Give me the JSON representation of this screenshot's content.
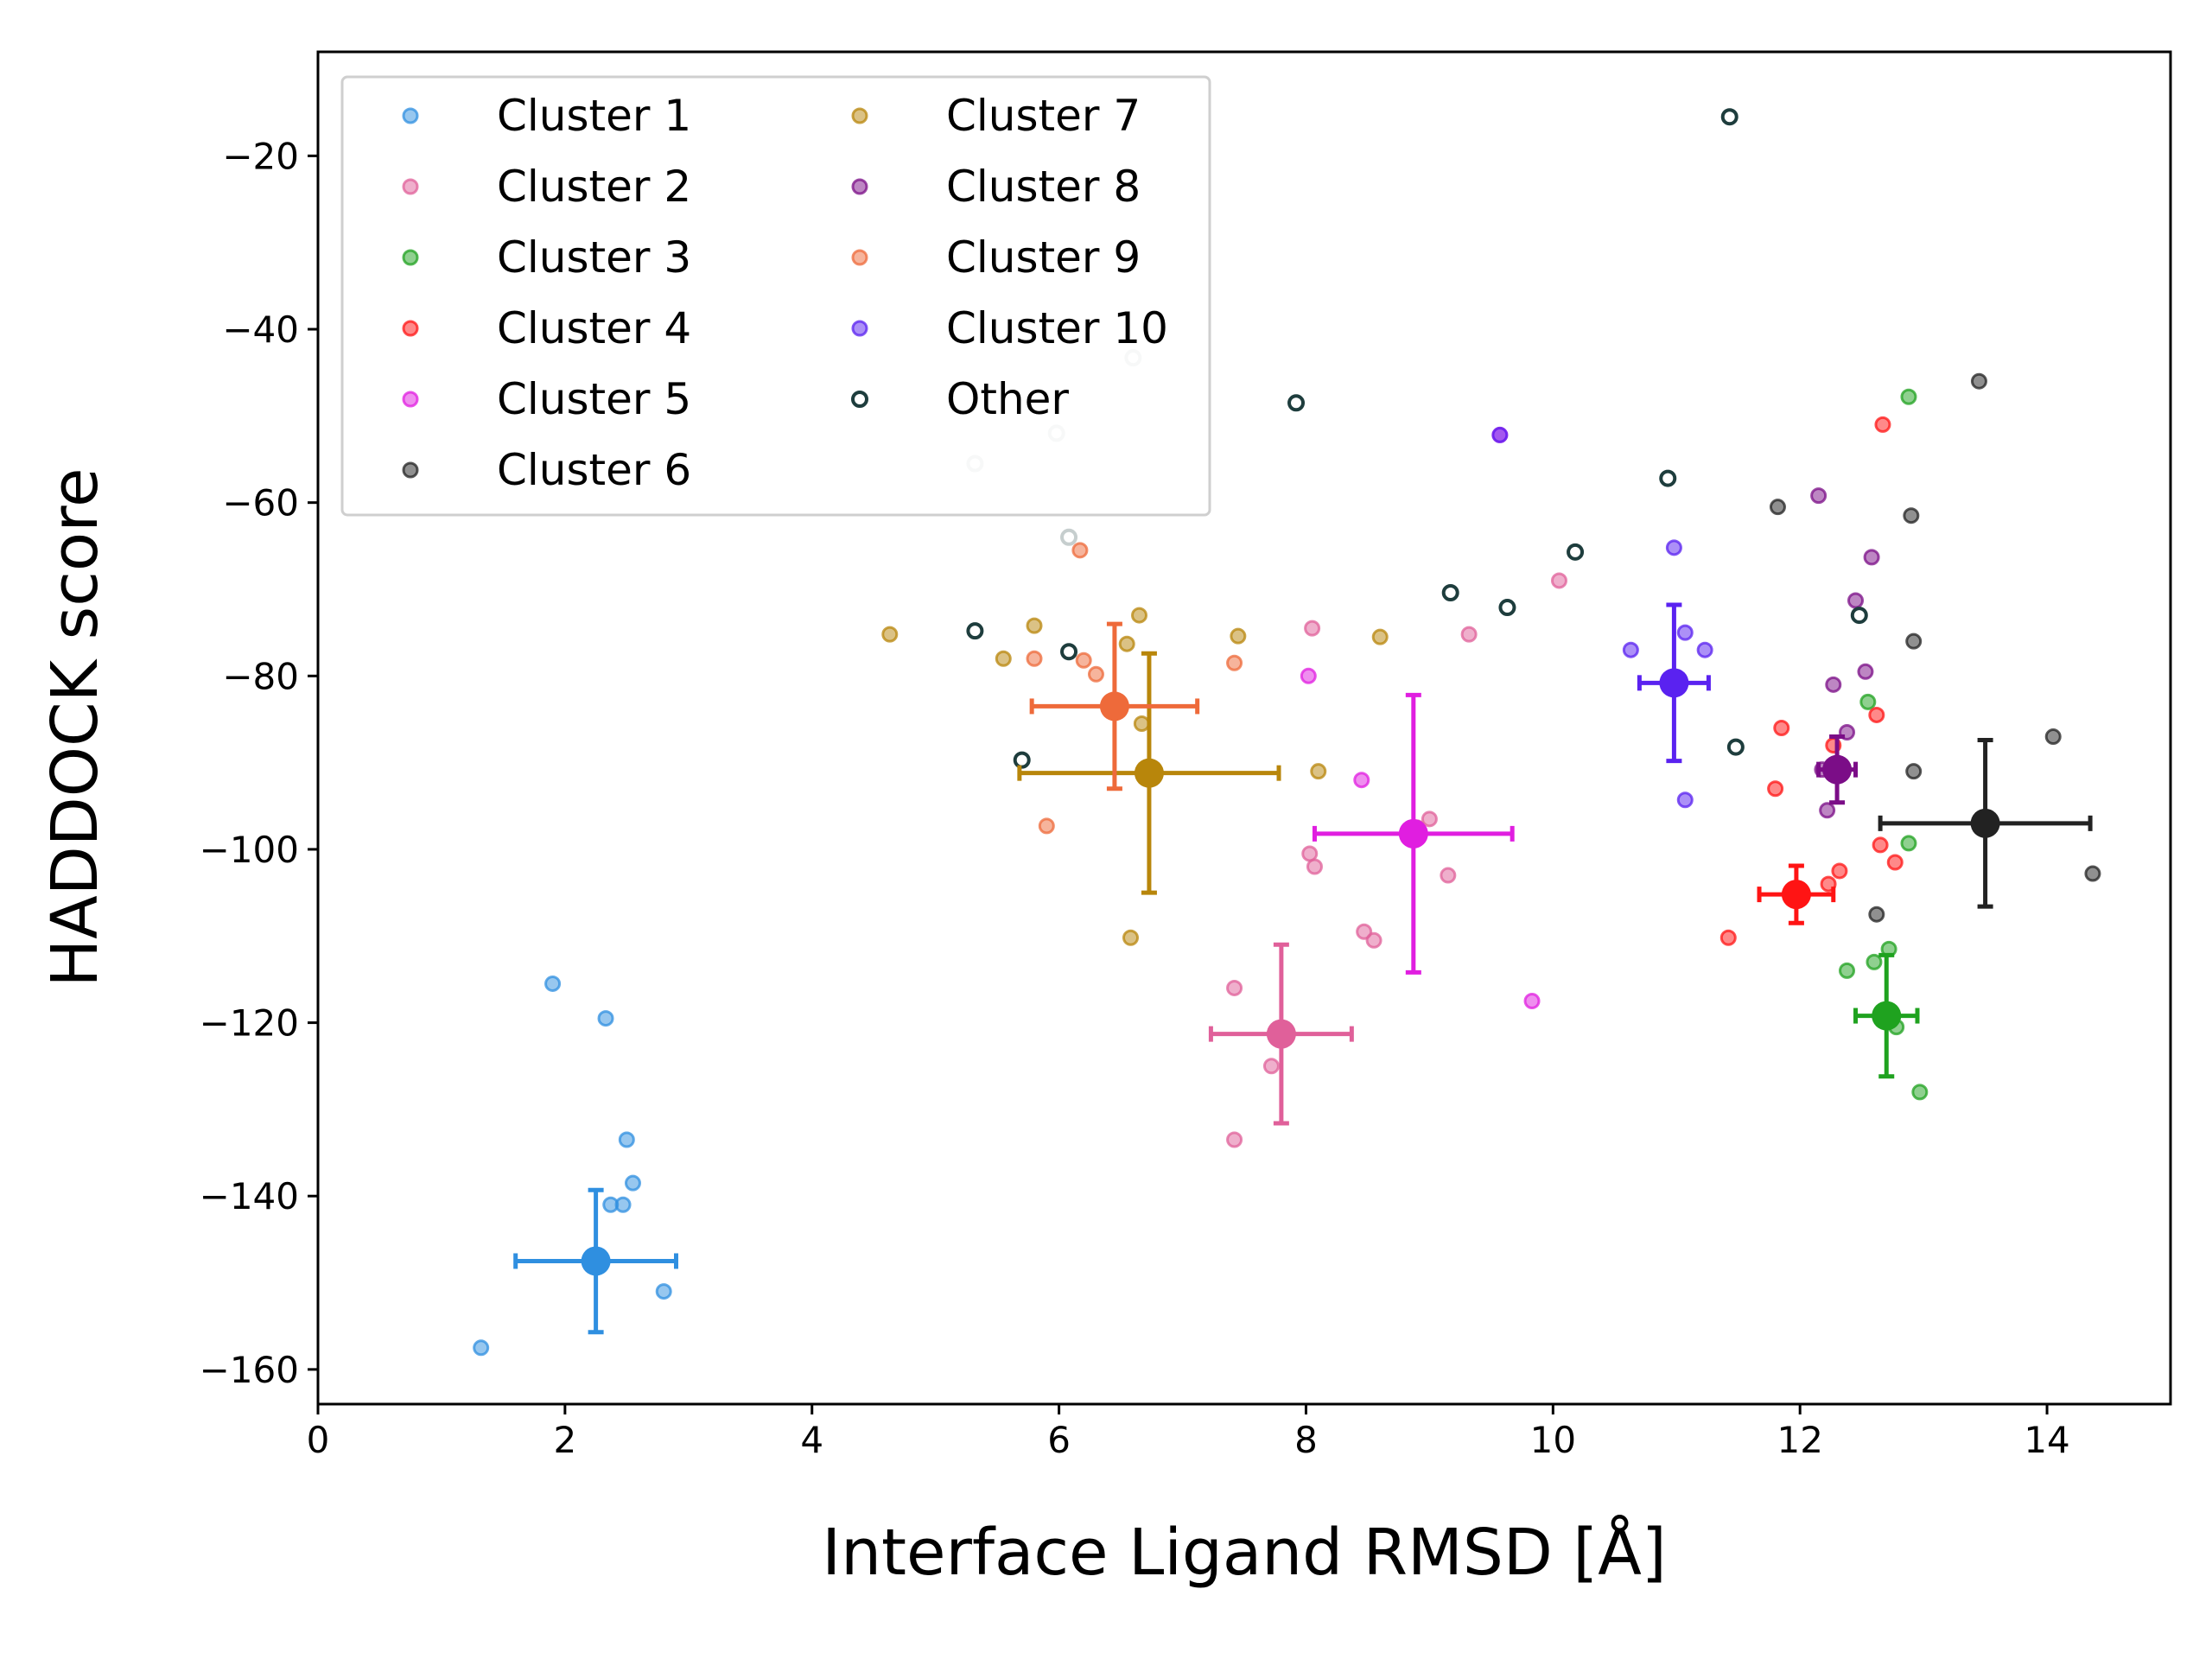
{
  "chart_data": {
    "type": "scatter",
    "title": "",
    "xlabel": "Interface Ligand RMSD [Å]",
    "ylabel": "HADDOCK score",
    "xlim": [
      0,
      15
    ],
    "ylim": [
      -164,
      -8
    ],
    "xticks": [
      0,
      2,
      4,
      6,
      8,
      10,
      12,
      14
    ],
    "yticks": [
      -20,
      -40,
      -60,
      -80,
      -100,
      -120,
      -140,
      -160
    ],
    "xtick_labels": [
      "0",
      "2",
      "4",
      "6",
      "8",
      "10",
      "12",
      "14"
    ],
    "ytick_labels": [
      "−20",
      "−40",
      "−60",
      "−80",
      "−100",
      "−120",
      "−140",
      "−160"
    ],
    "grid": false,
    "legend": "top-left, 2 columns",
    "series": [
      {
        "name": "Cluster 1",
        "color": "#2f8fe0",
        "points": [
          [
            1.9,
            -115.5
          ],
          [
            2.33,
            -119.5
          ],
          [
            2.5,
            -133.5
          ],
          [
            2.55,
            -138.5
          ],
          [
            2.37,
            -141
          ],
          [
            2.47,
            -141
          ],
          [
            2.8,
            -151
          ],
          [
            1.32,
            -157.5
          ]
        ],
        "mean": [
          2.25,
          -147.5
        ],
        "xerr": 0.65,
        "yerr": 8.2
      },
      {
        "name": "Cluster 2",
        "color": "#e0609a",
        "points": [
          [
            7.42,
            -116
          ],
          [
            7.72,
            -125
          ],
          [
            7.42,
            -133.5
          ],
          [
            8.05,
            -74.5
          ],
          [
            9.32,
            -75.2
          ],
          [
            8.03,
            -100.5
          ],
          [
            8.07,
            -102
          ],
          [
            8.47,
            -109.5
          ],
          [
            8.55,
            -110.5
          ],
          [
            9.0,
            -96.5
          ],
          [
            9.15,
            -103
          ],
          [
            8.9,
            -97.5
          ],
          [
            10.05,
            -69
          ]
        ],
        "mean": [
          7.8,
          -121.3
        ],
        "xerr": 0.57,
        "yerr": 10.3
      },
      {
        "name": "Cluster 3",
        "color": "#1fa21f",
        "points": [
          [
            12.88,
            -47.8
          ],
          [
            12.88,
            -99.3
          ],
          [
            12.72,
            -111.5
          ],
          [
            12.6,
            -113
          ],
          [
            12.38,
            -114
          ],
          [
            12.78,
            -120.5
          ],
          [
            12.97,
            -128
          ],
          [
            12.55,
            -83
          ]
        ],
        "mean": [
          12.7,
          -119.2
        ],
        "xerr": 0.25,
        "yerr": 7
      },
      {
        "name": "Cluster 4",
        "color": "#ff1414",
        "points": [
          [
            12.67,
            -51
          ],
          [
            11.85,
            -86
          ],
          [
            11.8,
            -93
          ],
          [
            11.42,
            -110.2
          ],
          [
            12.23,
            -104
          ],
          [
            12.32,
            -102.5
          ],
          [
            12.65,
            -99.5
          ],
          [
            12.77,
            -101.5
          ],
          [
            12.62,
            -84.5
          ],
          [
            12.27,
            -88
          ]
        ],
        "mean": [
          11.97,
          -105.2
        ],
        "xerr": 0.3,
        "yerr": 3.3
      },
      {
        "name": "Cluster 5",
        "color": "#e01ee0",
        "points": [
          [
            9.57,
            -52.2
          ],
          [
            8.02,
            -80
          ],
          [
            8.45,
            -92
          ],
          [
            9.83,
            -117.5
          ]
        ],
        "mean": [
          8.87,
          -98.2
        ],
        "xerr": 0.8,
        "yerr": 16
      },
      {
        "name": "Cluster 6",
        "color": "#222222",
        "points": [
          [
            13.45,
            -46
          ],
          [
            12.9,
            -61.5
          ],
          [
            12.92,
            -76
          ],
          [
            12.92,
            -91
          ],
          [
            14.05,
            -87
          ],
          [
            14.37,
            -102.8
          ],
          [
            12.62,
            -107.5
          ],
          [
            11.82,
            -60.5
          ]
        ],
        "mean": [
          13.5,
          -97
        ],
        "xerr": 0.85,
        "yerr": 9.6
      },
      {
        "name": "Cluster 7",
        "color": "#b8860b",
        "points": [
          [
            4.63,
            -75.2
          ],
          [
            5.55,
            -78
          ],
          [
            5.8,
            -74.2
          ],
          [
            6.65,
            -73
          ],
          [
            6.55,
            -76.3
          ],
          [
            7.45,
            -75.4
          ],
          [
            8.6,
            -75.5
          ],
          [
            8.1,
            -91
          ],
          [
            6.58,
            -110.2
          ],
          [
            6.67,
            -85.5
          ]
        ],
        "mean": [
          6.73,
          -91.2
        ],
        "xerr": 1.05,
        "yerr": 13.8
      },
      {
        "name": "Cluster 8",
        "color": "#7b0d87",
        "points": [
          [
            12.15,
            -59.2
          ],
          [
            12.45,
            -71.3
          ],
          [
            12.38,
            -86.5
          ],
          [
            12.58,
            -66.3
          ],
          [
            12.53,
            -79.5
          ],
          [
            12.27,
            -81
          ],
          [
            12.22,
            -95.5
          ],
          [
            12.18,
            -90.8
          ]
        ],
        "mean": [
          12.3,
          -90.8
        ],
        "xerr": 0.15,
        "yerr": 3.8
      },
      {
        "name": "Cluster 9",
        "color": "#ee6a3a",
        "points": [
          [
            6.17,
            -65.5
          ],
          [
            5.8,
            -78
          ],
          [
            6.2,
            -78.2
          ],
          [
            6.3,
            -79.8
          ],
          [
            5.9,
            -97.3
          ],
          [
            7.42,
            -78.5
          ]
        ],
        "mean": [
          6.45,
          -83.5
        ],
        "xerr": 0.67,
        "yerr": 9.5
      },
      {
        "name": "Cluster 10",
        "color": "#5a22f0",
        "points": [
          [
            9.57,
            -52.2
          ],
          [
            10.98,
            -65.2
          ],
          [
            10.63,
            -77
          ],
          [
            11.07,
            -75
          ],
          [
            11.23,
            -77
          ],
          [
            11.07,
            -94.3
          ]
        ],
        "mean": [
          10.98,
          -80.8
        ],
        "xerr": 0.28,
        "yerr": 9
      },
      {
        "name": "Other",
        "color": "#1e3d3d",
        "open": true,
        "points": [
          [
            11.43,
            -15.5
          ],
          [
            7.92,
            -48.5
          ],
          [
            10.93,
            -57.2
          ],
          [
            10.18,
            -65.7
          ],
          [
            9.17,
            -70.4
          ],
          [
            9.63,
            -72.1
          ],
          [
            5.32,
            -74.8
          ],
          [
            6.08,
            -77.2
          ],
          [
            5.7,
            -89.7
          ],
          [
            11.48,
            -88.2
          ],
          [
            12.48,
            -73
          ]
        ]
      },
      {
        "name": "",
        "color": "#c6cece",
        "open": true,
        "points": [
          [
            6.6,
            -43.3
          ],
          [
            5.98,
            -52
          ],
          [
            5.32,
            -55.5
          ],
          [
            6.08,
            -64
          ]
        ]
      }
    ]
  }
}
